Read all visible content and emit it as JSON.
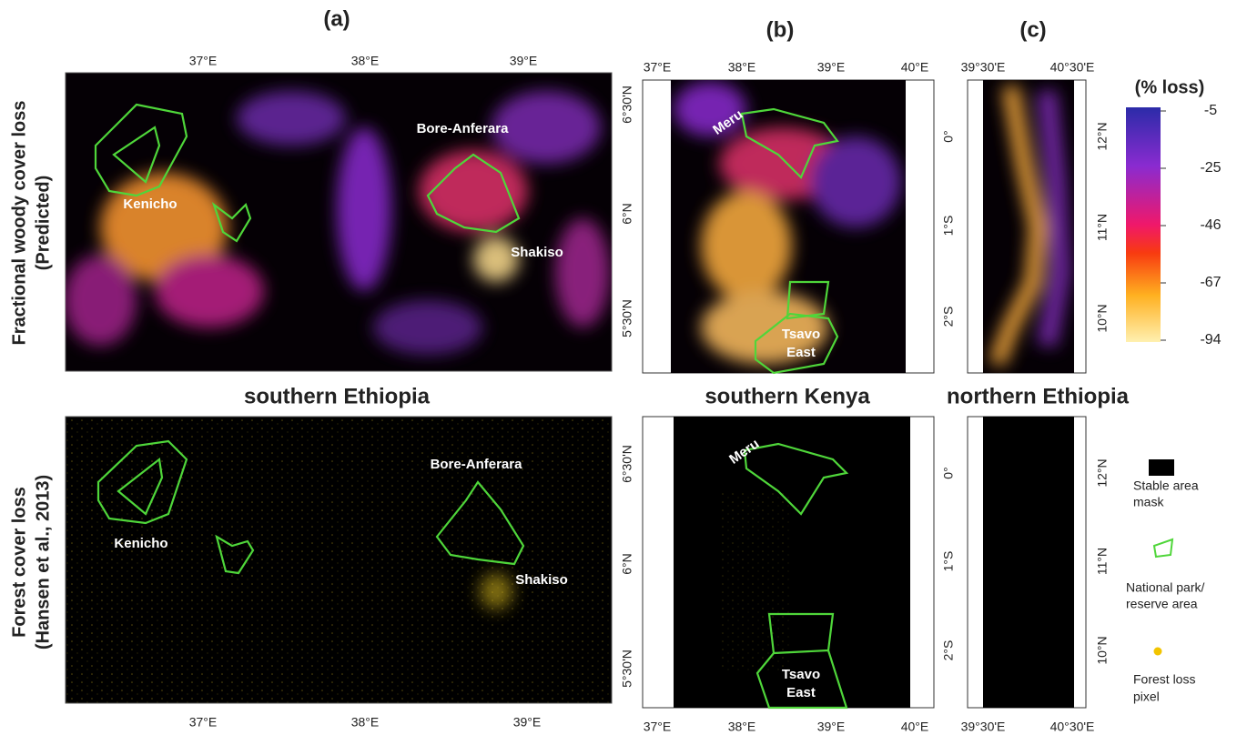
{
  "panel_labels": [
    "(a)",
    "(b)",
    "(c)"
  ],
  "row_labels": [
    [
      "Fractional woody cover loss",
      "(Predicted)"
    ],
    [
      "Forest cover loss",
      "(Hansen et al., 2013)"
    ]
  ],
  "region_titles": [
    "southern Ethiopia",
    "southern Kenya",
    "northern Ethiopia"
  ],
  "maps": {
    "a": {
      "lon_ticks": [
        "37°E",
        "38°E",
        "39°E"
      ],
      "lat_ticks": [
        "6°30'N",
        "6°N",
        "5°30'N"
      ],
      "places": [
        "Kenicho",
        "Bore-Anferara",
        "Shakiso"
      ]
    },
    "b": {
      "lon_ticks": [
        "37°E",
        "38°E",
        "39°E",
        "40°E"
      ],
      "lat_ticks": [
        "0°",
        "1°S",
        "2°S"
      ],
      "places": [
        "Meru",
        [
          "Tsavo",
          "East"
        ]
      ]
    },
    "c": {
      "lon_ticks": [
        "39°30'E",
        "40°30'E"
      ],
      "lat_ticks": [
        "12°N",
        "11°N",
        "10°N"
      ]
    }
  },
  "colorbar": {
    "title": "(% loss)",
    "ticks": [
      "-5",
      "-25",
      "-46",
      "-67",
      "-94"
    ]
  },
  "legend": [
    [
      "Stable area",
      "mask"
    ],
    [
      "National park/",
      "reserve area"
    ],
    [
      "Forest loss",
      "pixel"
    ]
  ]
}
